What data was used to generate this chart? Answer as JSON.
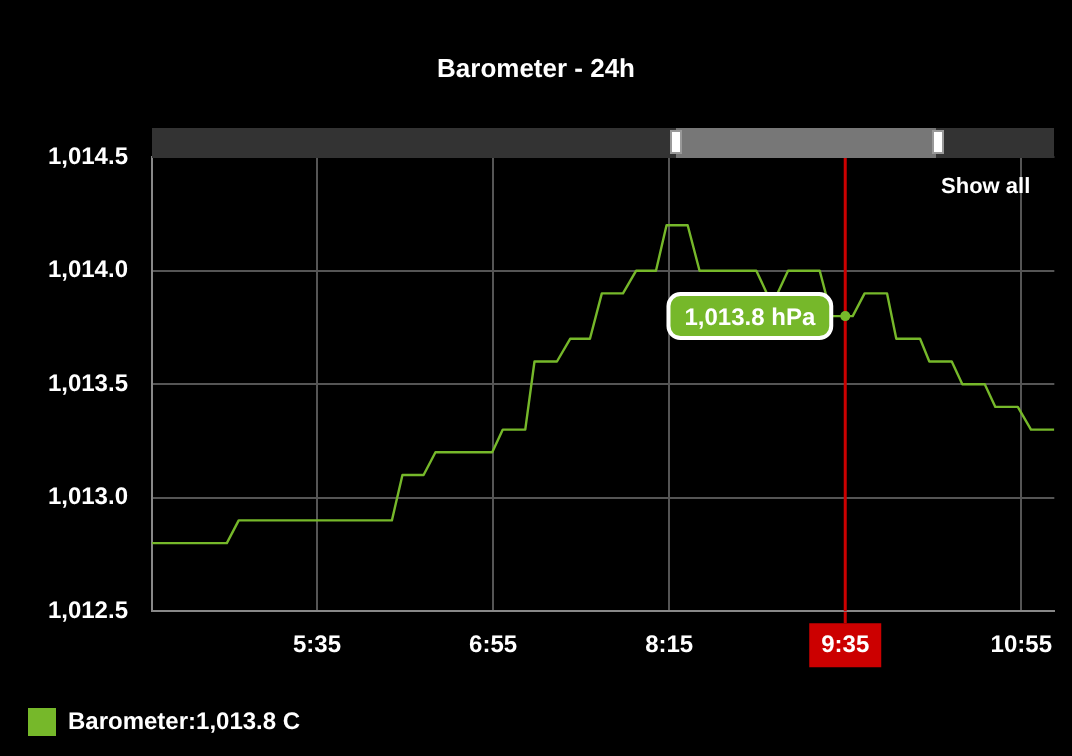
{
  "chart_data": {
    "type": "line",
    "title": "Barometer - 24h",
    "xlim": [
      4.3333,
      11.1667
    ],
    "xticks": [
      {
        "value": 5.5833,
        "label": "5:35"
      },
      {
        "value": 6.9167,
        "label": "6:55"
      },
      {
        "value": 8.25,
        "label": "8:15"
      },
      {
        "value": 9.5833,
        "label": "9:35"
      },
      {
        "value": 10.9167,
        "label": "10:55"
      }
    ],
    "ylim": [
      1012.5,
      1014.5
    ],
    "yticks": [
      {
        "value": 1012.5,
        "label": "1,012.5"
      },
      {
        "value": 1013,
        "label": "1,013.0"
      },
      {
        "value": 1013.5,
        "label": "1,013.5"
      },
      {
        "value": 1014,
        "label": "1,014.0"
      },
      {
        "value": 1014.5,
        "label": "1,014.5"
      }
    ],
    "series": [
      {
        "name": "Barometer:1,013.8 C",
        "color": "#76b82a",
        "x": [
          4.3333,
          4.9,
          4.99,
          6.15,
          6.23,
          6.39,
          6.48,
          6.91,
          6.99,
          7.16,
          7.23,
          7.4,
          7.5,
          7.65,
          7.74,
          7.9,
          8.0,
          8.15,
          8.23,
          8.39,
          8.48,
          8.91,
          8.99,
          9.07,
          9.15,
          9.39,
          9.48,
          9.64,
          9.73,
          9.9,
          9.97,
          10.15,
          10.22,
          10.39,
          10.47,
          10.64,
          10.72,
          10.89,
          10.99,
          11.1667
        ],
        "values": [
          1012.8,
          1012.8,
          1012.9,
          1012.9,
          1013.1,
          1013.1,
          1013.2,
          1013.2,
          1013.3,
          1013.3,
          1013.6,
          1013.6,
          1013.7,
          1013.7,
          1013.9,
          1013.9,
          1014.0,
          1014.0,
          1014.2,
          1014.2,
          1014.0,
          1014.0,
          1013.9,
          1013.9,
          1014.0,
          1014.0,
          1013.8,
          1013.8,
          1013.9,
          1013.9,
          1013.7,
          1013.7,
          1013.6,
          1013.6,
          1013.5,
          1013.5,
          1013.4,
          1013.4,
          1013.3,
          1013.3
        ]
      }
    ],
    "ref_lines": [
      {
        "axis": "x",
        "value": 9.5833,
        "color": "#cc0000"
      }
    ],
    "annotations": [
      {
        "text": "1,013.8 hPa",
        "x": 9.5833,
        "y": 1013.8
      },
      "Show all"
    ],
    "grid": true,
    "legend": "bottom left",
    "marker": "none",
    "line_style": "solid"
  }
}
